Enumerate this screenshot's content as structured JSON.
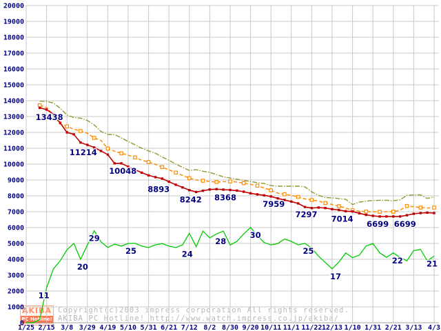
{
  "colors": {
    "grid": "#c9c9c9",
    "axis": "#a0a0a0",
    "axis_text": "#000080",
    "annotation_text": "#000080",
    "copyright_text": "#b8b8b8",
    "logo_orange": "#ff9166"
  },
  "footer": {
    "copyright_line1": "Copyright(c)2003 impress corporation All rights reserved.",
    "copyright_line2": "AKIBA PC Hotline!  http://www.watch.impress.co.jp/akiba/",
    "logo_title": "AKIBA",
    "logo_subtitle": "PC Hotline!"
  },
  "chart_data": {
    "type": "line",
    "title": "",
    "xlabel": "",
    "ylabel": "",
    "ylim": [
      0,
      20000
    ],
    "y_tick_step": 1000,
    "grid": true,
    "legend_position": "none",
    "n_points": 61,
    "points_per_tick": 3,
    "x_tick_labels": [
      "1/25",
      "2/15",
      "3/8",
      "3/29",
      "4/19",
      "5/10",
      "5/31",
      "6/21",
      "7/12",
      "8/2",
      "8/30",
      "9/20",
      "10/11",
      "11/1",
      "11/22",
      "12/13",
      "1/10",
      "1/31",
      "2/21",
      "3/13",
      "4/3"
    ],
    "series": [
      {
        "id": "olive",
        "name": "high-price-line",
        "color": "#96962e",
        "style": "dashdot",
        "marker": "none",
        "width": 1.4,
        "values": [
          null,
          null,
          13970,
          13950,
          13850,
          13520,
          13100,
          12940,
          12900,
          12750,
          12480,
          12060,
          11870,
          11870,
          11650,
          11435,
          11217,
          11000,
          10830,
          10690,
          10450,
          10240,
          10000,
          9800,
          9600,
          9650,
          9550,
          9480,
          9340,
          9200,
          9120,
          9050,
          8980,
          8900,
          8830,
          8780,
          8650,
          8610,
          8610,
          8610,
          8610,
          8570,
          8250,
          8030,
          7890,
          7880,
          7830,
          7780,
          7450,
          7600,
          7670,
          7700,
          7720,
          7720,
          7690,
          7750,
          8030,
          8060,
          8060,
          7840,
          7930
        ]
      },
      {
        "id": "orange",
        "name": "average-price-line",
        "color": "#ff8c00",
        "style": "dashed",
        "marker": "hollow-square",
        "width": 1.5,
        "values": [
          null,
          null,
          13710,
          13570,
          13100,
          12520,
          12380,
          12200,
          12087,
          11943,
          11652,
          11500,
          10980,
          10813,
          10682,
          10565,
          10420,
          10248,
          10130,
          9985,
          9813,
          9639,
          9465,
          9291,
          9117,
          9000,
          8950,
          8900,
          8870,
          8890,
          8910,
          8870,
          8800,
          8720,
          8640,
          8500,
          8350,
          8170,
          8100,
          8030,
          7930,
          7810,
          7740,
          7670,
          7550,
          7450,
          7350,
          7230,
          7090,
          7040,
          7010,
          7000,
          6990,
          7000,
          7000,
          7100,
          7360,
          7310,
          7260,
          7230,
          7260
        ]
      },
      {
        "id": "red",
        "name": "low-price-line",
        "color": "#c00000",
        "style": "solid",
        "marker": "filled-square",
        "width": 1.6,
        "values": [
          null,
          null,
          13550,
          13438,
          13150,
          12600,
          12000,
          11880,
          11360,
          11214,
          11050,
          10830,
          10600,
          10048,
          10048,
          9840,
          9650,
          9460,
          9290,
          9180,
          9087,
          8893,
          8700,
          8530,
          8360,
          8242,
          8320,
          8400,
          8420,
          8390,
          8368,
          8330,
          8260,
          8160,
          8090,
          8030,
          7959,
          7840,
          7740,
          7640,
          7520,
          7297,
          7230,
          7260,
          7230,
          7160,
          7110,
          7030,
          7014,
          6900,
          6800,
          6740,
          6699,
          6699,
          6699,
          6699,
          6780,
          6870,
          6913,
          6940,
          6913
        ]
      },
      {
        "id": "green",
        "name": "shop-count-line",
        "color": "#00cc00",
        "style": "solid",
        "marker": "none",
        "width": 1.3,
        "values": [
          0,
          0,
          200,
          2200,
          3400,
          3900,
          4600,
          5000,
          4000,
          4900,
          5800,
          5100,
          4750,
          4950,
          4830,
          5000,
          5010,
          4830,
          4740,
          4910,
          4990,
          4830,
          4740,
          4910,
          5640,
          4800,
          5780,
          5350,
          5600,
          5780,
          4900,
          5130,
          5600,
          6000,
          5490,
          5060,
          4910,
          4990,
          5280,
          5130,
          4910,
          5000,
          4700,
          4190,
          3800,
          3400,
          3830,
          4400,
          4100,
          4260,
          4840,
          4990,
          4410,
          4120,
          4400,
          4120,
          3900,
          4550,
          4620,
          3900,
          4200
        ]
      }
    ],
    "annotations": {
      "price_labels": [
        {
          "index": 3,
          "text": "13438",
          "dx": 4
        },
        {
          "index": 9,
          "text": "11214",
          "dx": -6
        },
        {
          "index": 13,
          "text": "10048",
          "dx": 12
        },
        {
          "index": 21,
          "text": "8893",
          "dx": -15
        },
        {
          "index": 25,
          "text": "8242",
          "dx": -8
        },
        {
          "index": 30,
          "text": "8368",
          "dx": -7
        },
        {
          "index": 36,
          "text": "7959",
          "dx": 4
        },
        {
          "index": 41,
          "text": "7297",
          "dx": 2
        },
        {
          "index": 48,
          "text": "7014",
          "dx": -15
        },
        {
          "index": 52,
          "text": "6699",
          "dx": -3
        },
        {
          "index": 55,
          "text": "6699",
          "dx": 7
        }
      ],
      "count_labels": [
        {
          "index": 3,
          "text": "11",
          "dx": -4
        },
        {
          "index": 8,
          "text": "20",
          "dx": 3
        },
        {
          "index": 10,
          "text": "29",
          "dx": 0
        },
        {
          "index": 15,
          "text": "25",
          "dx": 4
        },
        {
          "index": 25,
          "text": "24",
          "dx": -13
        },
        {
          "index": 28,
          "text": "28",
          "dx": 6
        },
        {
          "index": 33,
          "text": "30",
          "dx": 7
        },
        {
          "index": 41,
          "text": "25",
          "dx": 5
        },
        {
          "index": 45,
          "text": "17",
          "dx": 5
        },
        {
          "index": 54,
          "text": "22",
          "dx": 6
        },
        {
          "index": 60,
          "text": "21",
          "dx": -3
        }
      ]
    }
  }
}
